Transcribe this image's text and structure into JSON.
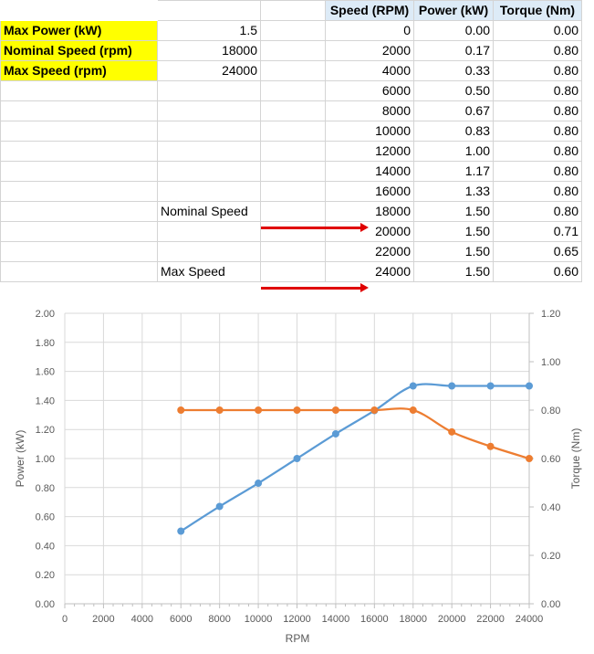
{
  "params": [
    {
      "label": "Max Power (kW)",
      "value": "1.5"
    },
    {
      "label": "Nominal Speed (rpm)",
      "value": "18000"
    },
    {
      "label": "Max Speed (rpm)",
      "value": "24000"
    }
  ],
  "table": {
    "headers": [
      "Speed (RPM)",
      "Power (kW)",
      "Torque (Nm)"
    ],
    "rows": [
      [
        "0",
        "0.00",
        "0.00"
      ],
      [
        "2000",
        "0.17",
        "0.80"
      ],
      [
        "4000",
        "0.33",
        "0.80"
      ],
      [
        "6000",
        "0.50",
        "0.80"
      ],
      [
        "8000",
        "0.67",
        "0.80"
      ],
      [
        "10000",
        "0.83",
        "0.80"
      ],
      [
        "12000",
        "1.00",
        "0.80"
      ],
      [
        "14000",
        "1.17",
        "0.80"
      ],
      [
        "16000",
        "1.33",
        "0.80"
      ],
      [
        "18000",
        "1.50",
        "0.80"
      ],
      [
        "20000",
        "1.50",
        "0.71"
      ],
      [
        "22000",
        "1.50",
        "0.65"
      ],
      [
        "24000",
        "1.50",
        "0.60"
      ]
    ]
  },
  "annotations": {
    "nominal": "Nominal Speed",
    "max": "Max Speed"
  },
  "colors": {
    "power": "#5b9bd5",
    "torque": "#ed7d31",
    "arrow": "#e00000",
    "highlight": "#ffff00",
    "header": "#ddebf7"
  },
  "chart_data": {
    "type": "line",
    "title": "",
    "xlabel": "RPM",
    "ylabel": "Power (kW)",
    "y2label": "Torque (Nm)",
    "xlim": [
      0,
      24000
    ],
    "ylim": [
      0,
      2.0
    ],
    "y2lim": [
      0,
      1.2
    ],
    "x_ticks": [
      "0",
      "2000",
      "4000",
      "6000",
      "8000",
      "10000",
      "12000",
      "14000",
      "16000",
      "18000",
      "20000",
      "22000",
      "24000"
    ],
    "y_ticks": [
      "0.00",
      "0.20",
      "0.40",
      "0.60",
      "0.80",
      "1.00",
      "1.20",
      "1.40",
      "1.60",
      "1.80",
      "2.00"
    ],
    "y2_ticks": [
      "0.00",
      "0.20",
      "0.40",
      "0.60",
      "0.80",
      "1.00",
      "1.20"
    ],
    "grid": true,
    "series": [
      {
        "axis": "left",
        "color": "#5b9bd5",
        "x": [
          6000,
          8000,
          10000,
          12000,
          14000,
          16000,
          18000,
          20000,
          22000,
          24000
        ],
        "values": [
          0.5,
          0.67,
          0.83,
          1.0,
          1.17,
          1.33,
          1.5,
          1.5,
          1.5,
          1.5
        ]
      },
      {
        "axis": "right",
        "color": "#ed7d31",
        "x": [
          6000,
          8000,
          10000,
          12000,
          14000,
          16000,
          18000,
          20000,
          22000,
          24000
        ],
        "values": [
          0.8,
          0.8,
          0.8,
          0.8,
          0.8,
          0.8,
          0.8,
          0.71,
          0.65,
          0.6
        ]
      }
    ]
  }
}
